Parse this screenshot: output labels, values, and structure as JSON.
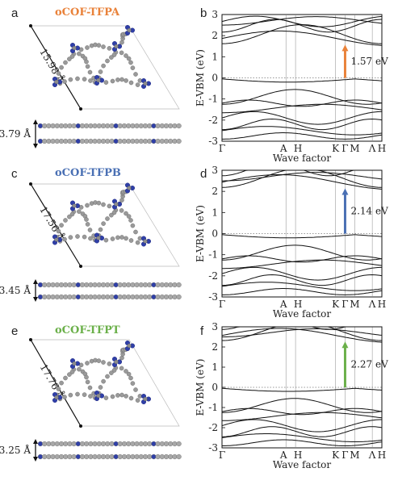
{
  "figure": {
    "panels": [
      {
        "structure_letter": "a",
        "title": "oCOF-TFPA",
        "title_color": "#e9823a",
        "lattice_label": "15.98 Å",
        "stack_label": "3.79 Å",
        "band_letter": "b",
        "gap_label": "1.57 eV",
        "arrow_color": "#e9823a"
      },
      {
        "structure_letter": "c",
        "title": "oCOF-TFPB",
        "title_color": "#4a70b4",
        "lattice_label": "17.56 Å",
        "stack_label": "3.45 Å",
        "band_letter": "d",
        "gap_label": "2.14 eV",
        "arrow_color": "#4a70b4"
      },
      {
        "structure_letter": "e",
        "title": "oCOF-TFPT",
        "title_color": "#6bb04a",
        "lattice_label": "17.76 Å",
        "stack_label": "3.25 Å",
        "band_letter": "f",
        "gap_label": "2.27 eV",
        "arrow_color": "#6bb04a"
      }
    ],
    "ylabel": "E-VBM (eV)",
    "xlabel": "Wave factor",
    "kpoint_labels": [
      "Γ",
      "A",
      "H",
      "K",
      "Γ",
      "M",
      "Λ",
      "H"
    ],
    "yticks": [
      "3",
      "2",
      "1",
      "0",
      "-1",
      "-2",
      "-3"
    ]
  },
  "chart_data": [
    {
      "type": "line",
      "xlabel": "Wave factor",
      "ylabel": "E-VBM (eV)",
      "ylim": [
        -3,
        3
      ],
      "x_ticks": [
        "Γ",
        "A",
        "H",
        "K",
        "Γ",
        "M",
        "Λ",
        "H"
      ],
      "band_gap_eV": 1.57,
      "grid": false
    },
    {
      "type": "line",
      "xlabel": "Wave factor",
      "ylabel": "E-VBM (eV)",
      "ylim": [
        -3,
        3
      ],
      "x_ticks": [
        "Γ",
        "A",
        "H",
        "K",
        "Γ",
        "M",
        "Λ",
        "H"
      ],
      "band_gap_eV": 2.14,
      "grid": false
    },
    {
      "type": "line",
      "xlabel": "Wave factor",
      "ylabel": "E-VBM (eV)",
      "ylim": [
        -3,
        3
      ],
      "x_ticks": [
        "Γ",
        "A",
        "H",
        "K",
        "Γ",
        "M",
        "Λ",
        "H"
      ],
      "band_gap_eV": 2.27,
      "grid": false
    }
  ]
}
